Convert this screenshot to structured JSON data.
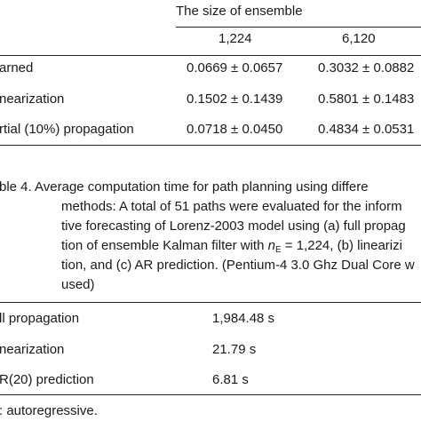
{
  "table3": {
    "group_header": "The size of ensemble",
    "columns": [
      "1,224",
      "6,120"
    ],
    "rows": [
      {
        "label": "arned",
        "values": [
          "0.0669 ± 0.0657",
          "0.3032 ± 0.0882"
        ]
      },
      {
        "label": "nearization",
        "values": [
          "0.1502 ± 0.1439",
          "0.5801 ± 0.1483"
        ]
      },
      {
        "label": "rtial (10%) propagation",
        "values": [
          "0.0718 ± 0.0450",
          "0.4834 ± 0.0531"
        ]
      }
    ]
  },
  "table4": {
    "caption_lines": [
      "ble 4. Average computation time for path planning using differe",
      "methods: A total of 51 paths were evaluated for the inform",
      "tive forecasting of Lorenz-2003 model using (a) full propag",
      "tion of ensemble Kalman filter with ",
      "tion, and (c) AR prediction. (Pentium-4 3.0 Ghz Dual Core w",
      "used)"
    ],
    "caption_ne_symbol": "n",
    "caption_ne_sub": "E",
    "caption_line4_rest": " = 1,224, (b) linearizi",
    "rows": [
      {
        "label": "ll propagation",
        "value": "1,984.48 s"
      },
      {
        "label": "nearization",
        "value": "21.79 s"
      },
      {
        "label": "R(20) prediction",
        "value": "6.81 s"
      }
    ],
    "footnote": ": autoregressive."
  }
}
